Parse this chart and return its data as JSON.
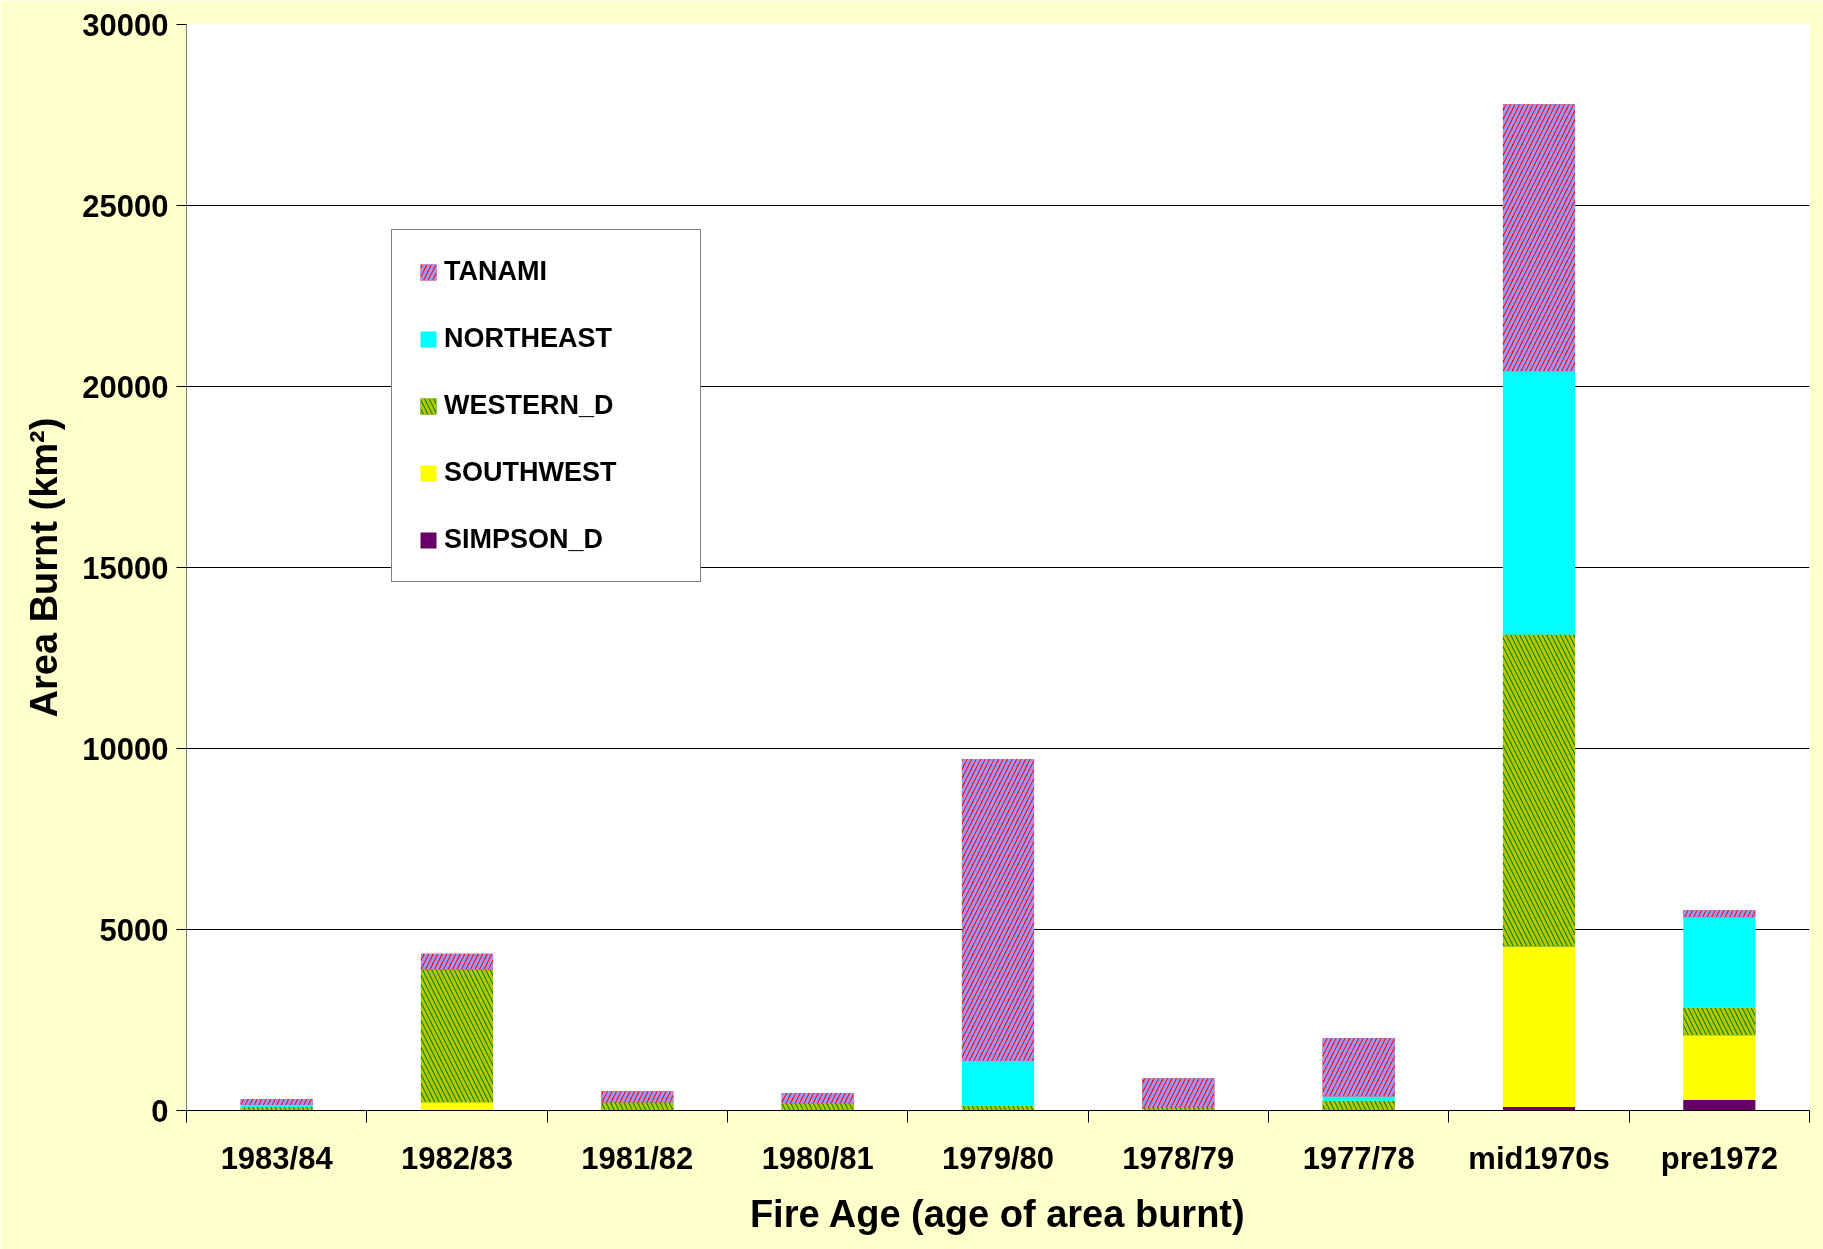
{
  "chart_data": {
    "type": "bar",
    "stacked": true,
    "xlabel": "Fire Age (age of area burnt)",
    "ylabel": "Area Burnt (km²)",
    "categories": [
      "1983/84",
      "1982/83",
      "1981/82",
      "1980/81",
      "1979/80",
      "1978/79",
      "1977/78",
      "mid1970s",
      "pre1972"
    ],
    "series": [
      {
        "name": "SIMPSON_D",
        "color": "#660066",
        "values": [
          null,
          null,
          null,
          null,
          null,
          null,
          null,
          100,
          300
        ]
      },
      {
        "name": "SOUTHWEST",
        "color": "#ffff00",
        "values": [
          null,
          230,
          null,
          null,
          null,
          null,
          null,
          4430,
          1780
        ]
      },
      {
        "name": "WESTERN_D",
        "color": "#008000",
        "values": [
          100,
          3660,
          230,
          180,
          130,
          70,
          270,
          8620,
          760
        ]
      },
      {
        "name": "NORTHEAST",
        "color": "#00ffff",
        "values": [
          50,
          null,
          null,
          null,
          1240,
          null,
          120,
          7270,
          2500
        ]
      },
      {
        "name": "TANAMI",
        "color": "#ff0000",
        "values": [
          170,
          440,
          300,
          300,
          8340,
          820,
          1610,
          7380,
          190
        ]
      }
    ],
    "ylim": [
      0,
      30000
    ],
    "yticks": [
      0,
      5000,
      10000,
      15000,
      20000,
      25000,
      30000
    ],
    "grid": "y",
    "legend": "top left"
  }
}
